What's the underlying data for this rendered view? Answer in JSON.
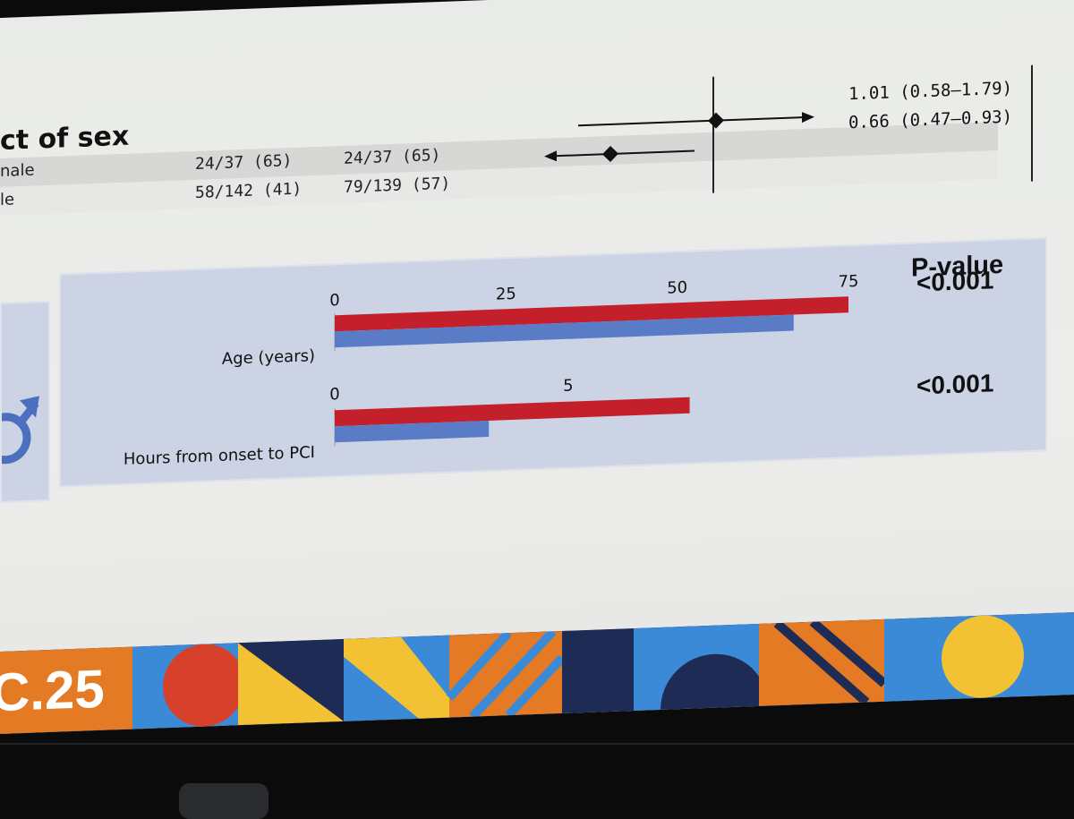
{
  "forest_plot": {
    "title": "ct of sex",
    "rows": [
      {
        "label": "nale",
        "group1": "24/37 (65)",
        "group2": "24/37 (65)",
        "estimate": "1.01 (0.58–1.79)"
      },
      {
        "label": "le",
        "group1": "58/142 (41)",
        "group2": "79/139 (57)",
        "estimate": "0.66 (0.47–0.93)"
      }
    ]
  },
  "chart_data": {
    "type": "bar",
    "orientation": "horizontal",
    "p_value_header": "P-value",
    "panels": [
      {
        "category": "Age (years)",
        "axis_ticks": [
          "0",
          "25",
          "50",
          "75"
        ],
        "xlim": [
          0,
          75
        ],
        "values": [
          75,
          67
        ],
        "p_value": "<0.001"
      },
      {
        "category": "Hours from onset to PCI",
        "axis_ticks": [
          "0",
          "5"
        ],
        "xlim": [
          0,
          11
        ],
        "values": [
          7.6,
          3.3
        ],
        "p_value": "<0.001"
      }
    ],
    "series_colors": [
      "#c4202b",
      "#5a7cc7"
    ]
  },
  "banner": {
    "logo_text": "C.25",
    "colors": {
      "orange": "#e47b24",
      "navy": "#1e2c55",
      "blue": "#3a8ad8",
      "yellow": "#f3c234",
      "red": "#d7402b"
    }
  }
}
